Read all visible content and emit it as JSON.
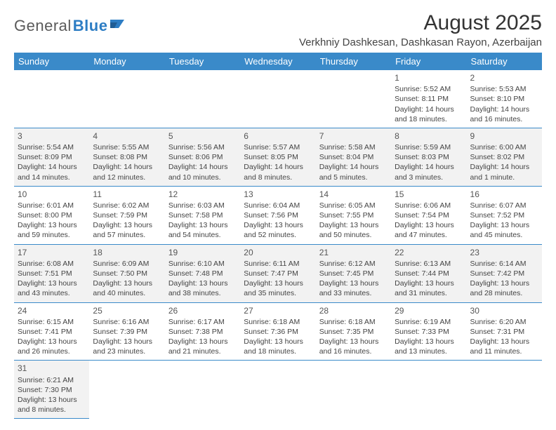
{
  "logo": {
    "part1": "General",
    "part2": "Blue"
  },
  "title": "August 2025",
  "subtitle": "Verkhniy Dashkesan, Dashkasan Rayon, Azerbaijan",
  "colors": {
    "header_bg": "#3a8ac9",
    "header_text": "#ffffff",
    "row_alt_bg": "#f2f2f2",
    "border": "#3a8ac9",
    "logo_gray": "#5a5a5a",
    "logo_blue": "#2d7dc4"
  },
  "day_headers": [
    "Sunday",
    "Monday",
    "Tuesday",
    "Wednesday",
    "Thursday",
    "Friday",
    "Saturday"
  ],
  "weeks": [
    [
      null,
      null,
      null,
      null,
      null,
      {
        "n": "1",
        "sr": "Sunrise: 5:52 AM",
        "ss": "Sunset: 8:11 PM",
        "d1": "Daylight: 14 hours",
        "d2": "and 18 minutes."
      },
      {
        "n": "2",
        "sr": "Sunrise: 5:53 AM",
        "ss": "Sunset: 8:10 PM",
        "d1": "Daylight: 14 hours",
        "d2": "and 16 minutes."
      }
    ],
    [
      {
        "n": "3",
        "sr": "Sunrise: 5:54 AM",
        "ss": "Sunset: 8:09 PM",
        "d1": "Daylight: 14 hours",
        "d2": "and 14 minutes."
      },
      {
        "n": "4",
        "sr": "Sunrise: 5:55 AM",
        "ss": "Sunset: 8:08 PM",
        "d1": "Daylight: 14 hours",
        "d2": "and 12 minutes."
      },
      {
        "n": "5",
        "sr": "Sunrise: 5:56 AM",
        "ss": "Sunset: 8:06 PM",
        "d1": "Daylight: 14 hours",
        "d2": "and 10 minutes."
      },
      {
        "n": "6",
        "sr": "Sunrise: 5:57 AM",
        "ss": "Sunset: 8:05 PM",
        "d1": "Daylight: 14 hours",
        "d2": "and 8 minutes."
      },
      {
        "n": "7",
        "sr": "Sunrise: 5:58 AM",
        "ss": "Sunset: 8:04 PM",
        "d1": "Daylight: 14 hours",
        "d2": "and 5 minutes."
      },
      {
        "n": "8",
        "sr": "Sunrise: 5:59 AM",
        "ss": "Sunset: 8:03 PM",
        "d1": "Daylight: 14 hours",
        "d2": "and 3 minutes."
      },
      {
        "n": "9",
        "sr": "Sunrise: 6:00 AM",
        "ss": "Sunset: 8:02 PM",
        "d1": "Daylight: 14 hours",
        "d2": "and 1 minute."
      }
    ],
    [
      {
        "n": "10",
        "sr": "Sunrise: 6:01 AM",
        "ss": "Sunset: 8:00 PM",
        "d1": "Daylight: 13 hours",
        "d2": "and 59 minutes."
      },
      {
        "n": "11",
        "sr": "Sunrise: 6:02 AM",
        "ss": "Sunset: 7:59 PM",
        "d1": "Daylight: 13 hours",
        "d2": "and 57 minutes."
      },
      {
        "n": "12",
        "sr": "Sunrise: 6:03 AM",
        "ss": "Sunset: 7:58 PM",
        "d1": "Daylight: 13 hours",
        "d2": "and 54 minutes."
      },
      {
        "n": "13",
        "sr": "Sunrise: 6:04 AM",
        "ss": "Sunset: 7:56 PM",
        "d1": "Daylight: 13 hours",
        "d2": "and 52 minutes."
      },
      {
        "n": "14",
        "sr": "Sunrise: 6:05 AM",
        "ss": "Sunset: 7:55 PM",
        "d1": "Daylight: 13 hours",
        "d2": "and 50 minutes."
      },
      {
        "n": "15",
        "sr": "Sunrise: 6:06 AM",
        "ss": "Sunset: 7:54 PM",
        "d1": "Daylight: 13 hours",
        "d2": "and 47 minutes."
      },
      {
        "n": "16",
        "sr": "Sunrise: 6:07 AM",
        "ss": "Sunset: 7:52 PM",
        "d1": "Daylight: 13 hours",
        "d2": "and 45 minutes."
      }
    ],
    [
      {
        "n": "17",
        "sr": "Sunrise: 6:08 AM",
        "ss": "Sunset: 7:51 PM",
        "d1": "Daylight: 13 hours",
        "d2": "and 43 minutes."
      },
      {
        "n": "18",
        "sr": "Sunrise: 6:09 AM",
        "ss": "Sunset: 7:50 PM",
        "d1": "Daylight: 13 hours",
        "d2": "and 40 minutes."
      },
      {
        "n": "19",
        "sr": "Sunrise: 6:10 AM",
        "ss": "Sunset: 7:48 PM",
        "d1": "Daylight: 13 hours",
        "d2": "and 38 minutes."
      },
      {
        "n": "20",
        "sr": "Sunrise: 6:11 AM",
        "ss": "Sunset: 7:47 PM",
        "d1": "Daylight: 13 hours",
        "d2": "and 35 minutes."
      },
      {
        "n": "21",
        "sr": "Sunrise: 6:12 AM",
        "ss": "Sunset: 7:45 PM",
        "d1": "Daylight: 13 hours",
        "d2": "and 33 minutes."
      },
      {
        "n": "22",
        "sr": "Sunrise: 6:13 AM",
        "ss": "Sunset: 7:44 PM",
        "d1": "Daylight: 13 hours",
        "d2": "and 31 minutes."
      },
      {
        "n": "23",
        "sr": "Sunrise: 6:14 AM",
        "ss": "Sunset: 7:42 PM",
        "d1": "Daylight: 13 hours",
        "d2": "and 28 minutes."
      }
    ],
    [
      {
        "n": "24",
        "sr": "Sunrise: 6:15 AM",
        "ss": "Sunset: 7:41 PM",
        "d1": "Daylight: 13 hours",
        "d2": "and 26 minutes."
      },
      {
        "n": "25",
        "sr": "Sunrise: 6:16 AM",
        "ss": "Sunset: 7:39 PM",
        "d1": "Daylight: 13 hours",
        "d2": "and 23 minutes."
      },
      {
        "n": "26",
        "sr": "Sunrise: 6:17 AM",
        "ss": "Sunset: 7:38 PM",
        "d1": "Daylight: 13 hours",
        "d2": "and 21 minutes."
      },
      {
        "n": "27",
        "sr": "Sunrise: 6:18 AM",
        "ss": "Sunset: 7:36 PM",
        "d1": "Daylight: 13 hours",
        "d2": "and 18 minutes."
      },
      {
        "n": "28",
        "sr": "Sunrise: 6:18 AM",
        "ss": "Sunset: 7:35 PM",
        "d1": "Daylight: 13 hours",
        "d2": "and 16 minutes."
      },
      {
        "n": "29",
        "sr": "Sunrise: 6:19 AM",
        "ss": "Sunset: 7:33 PM",
        "d1": "Daylight: 13 hours",
        "d2": "and 13 minutes."
      },
      {
        "n": "30",
        "sr": "Sunrise: 6:20 AM",
        "ss": "Sunset: 7:31 PM",
        "d1": "Daylight: 13 hours",
        "d2": "and 11 minutes."
      }
    ],
    [
      {
        "n": "31",
        "sr": "Sunrise: 6:21 AM",
        "ss": "Sunset: 7:30 PM",
        "d1": "Daylight: 13 hours",
        "d2": "and 8 minutes."
      },
      null,
      null,
      null,
      null,
      null,
      null
    ]
  ]
}
